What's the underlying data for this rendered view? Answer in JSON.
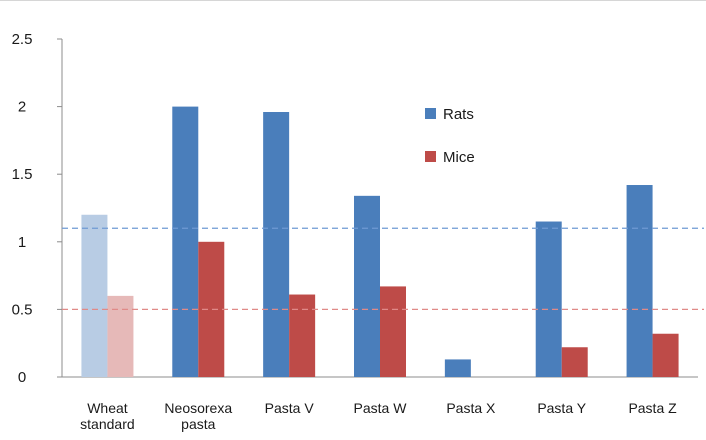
{
  "chart_data": {
    "type": "bar",
    "categories": [
      [
        "Wheat",
        "standard"
      ],
      [
        "Neosorexa",
        "pasta"
      ],
      [
        "Pasta V"
      ],
      [
        "Pasta W"
      ],
      [
        "Pasta X"
      ],
      [
        "Pasta Y"
      ],
      [
        "Pasta Z"
      ]
    ],
    "series": [
      {
        "name": "Rats",
        "color": "#4a7ebb",
        "faded_color": "#b8cce4",
        "values": [
          1.2,
          2.0,
          1.96,
          1.34,
          0.13,
          1.15,
          1.42
        ]
      },
      {
        "name": "Mice",
        "color": "#be4b48",
        "faded_color": "#e6b9b8",
        "values": [
          0.6,
          1.0,
          0.61,
          0.67,
          0.0,
          0.22,
          0.32
        ]
      }
    ],
    "faded_categories": [
      0
    ],
    "reference_lines": [
      {
        "value": 1.1,
        "color": "#6f9ad4",
        "style": "dashed"
      },
      {
        "value": 0.5,
        "color": "#e08a88",
        "style": "dashed"
      }
    ],
    "yticks": [
      "0",
      "0.5",
      "1",
      "1.5",
      "2",
      "2.5"
    ],
    "ylim": [
      0,
      2.5
    ],
    "grid": false,
    "legend_position": "top-center-right"
  }
}
